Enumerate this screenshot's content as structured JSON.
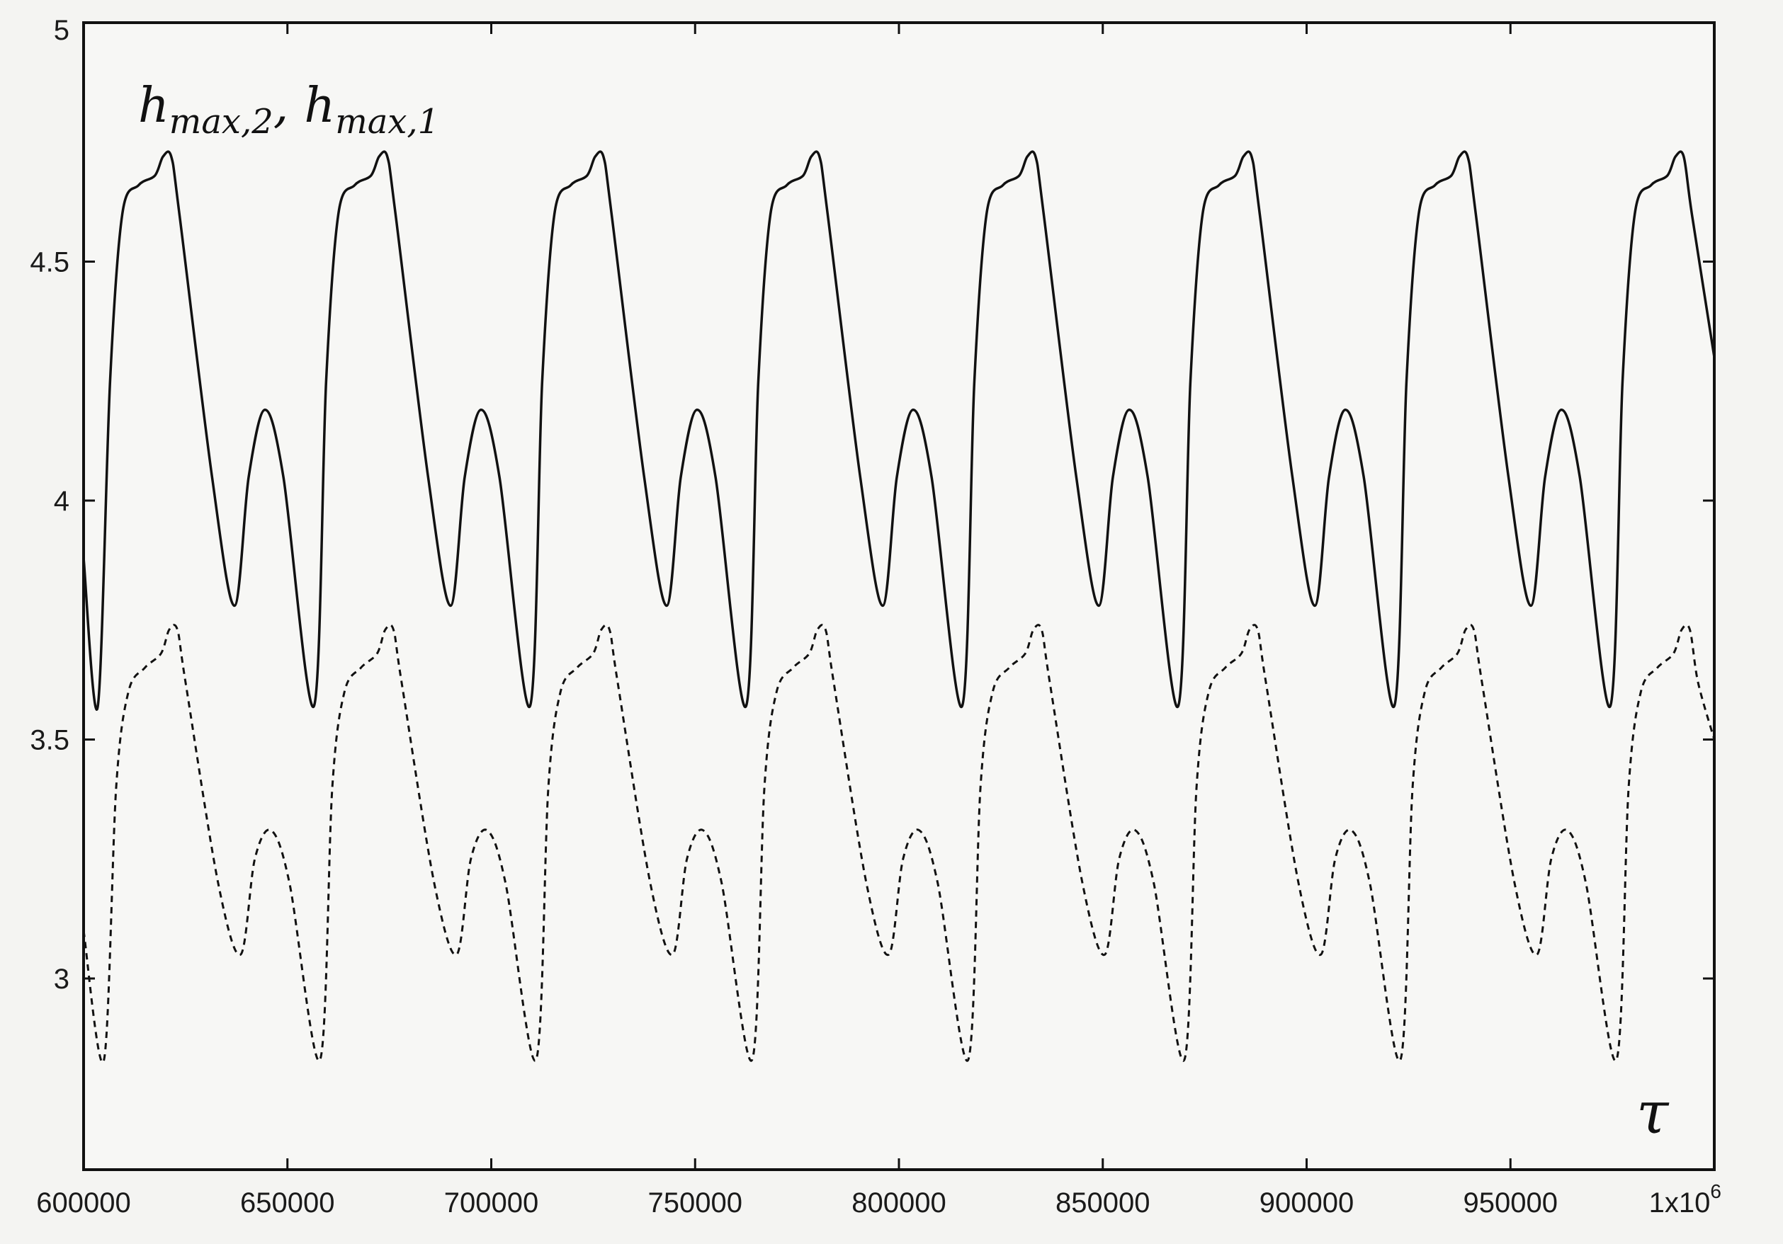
{
  "chart_data": {
    "type": "line",
    "xlabel": "τ",
    "ylabel": "",
    "annotation": {
      "base_a": "h",
      "sub_a": "max,2",
      "separator": ",",
      "base_b": "h",
      "sub_b": "max,1"
    },
    "xlim": [
      600000,
      1000000
    ],
    "ylim": [
      2.6,
      5
    ],
    "x_ticks": [
      600000,
      650000,
      700000,
      750000,
      800000,
      850000,
      900000,
      950000,
      1000000
    ],
    "x_tick_labels": [
      "600000",
      "650000",
      "700000",
      "750000",
      "800000",
      "850000",
      "900000",
      "950000",
      "1x10"
    ],
    "x_tick_last_exponent": "6",
    "y_ticks": [
      3,
      3.5,
      4,
      4.5,
      5
    ],
    "y_tick_labels": [
      "3",
      "3.5",
      "4",
      "4.5",
      "5"
    ],
    "grid": false,
    "legend": "none",
    "series": [
      {
        "style": "solid",
        "color": "#111111",
        "x": [
          600000,
          603500,
          606500,
          609500,
          613500,
          617500,
          619500,
          621500,
          623500,
          631500,
          637000,
          640500,
          644500,
          649000,
          656500,
          659500,
          662500,
          666500,
          670500,
          672500,
          674500,
          676500,
          684500,
          690000,
          693500,
          697500,
          702000,
          709500,
          712500,
          715500,
          719500,
          723500,
          725500,
          727500,
          729500,
          737500,
          743000,
          746500,
          750500,
          755000,
          762500,
          765500,
          768500,
          772500,
          776500,
          778500,
          780500,
          782500,
          790500,
          796000,
          799500,
          803500,
          808000,
          815500,
          818500,
          821500,
          825500,
          829500,
          831500,
          833500,
          835500,
          843500,
          849000,
          852500,
          856500,
          861000,
          868500,
          871500,
          874500,
          878500,
          882500,
          884500,
          886500,
          888500,
          896500,
          902000,
          905500,
          909500,
          914000,
          921500,
          924500,
          927500,
          931500,
          935500,
          937500,
          939500,
          941500,
          949500,
          955000,
          958500,
          962500,
          967000,
          974500,
          977500,
          980500,
          984500,
          988500,
          990500,
          992500,
          994500,
          1000000
        ],
        "y": [
          3.88,
          3.57,
          4.25,
          4.6,
          4.66,
          4.68,
          4.72,
          4.72,
          4.6,
          4.05,
          3.78,
          4.05,
          4.19,
          4.05,
          3.57,
          4.25,
          4.6,
          4.66,
          4.68,
          4.72,
          4.72,
          4.6,
          4.05,
          3.78,
          4.05,
          4.19,
          4.05,
          3.57,
          4.25,
          4.6,
          4.66,
          4.68,
          4.72,
          4.72,
          4.6,
          4.05,
          3.78,
          4.05,
          4.19,
          4.05,
          3.57,
          4.25,
          4.6,
          4.66,
          4.68,
          4.72,
          4.72,
          4.6,
          4.05,
          3.78,
          4.05,
          4.19,
          4.05,
          3.57,
          4.25,
          4.6,
          4.66,
          4.68,
          4.72,
          4.72,
          4.6,
          4.05,
          3.78,
          4.05,
          4.19,
          4.05,
          3.57,
          4.25,
          4.6,
          4.66,
          4.68,
          4.72,
          4.72,
          4.6,
          4.05,
          3.78,
          4.05,
          4.19,
          4.05,
          3.57,
          4.25,
          4.6,
          4.66,
          4.68,
          4.72,
          4.72,
          4.6,
          4.05,
          3.78,
          4.05,
          4.19,
          4.05,
          3.57,
          4.25,
          4.6,
          4.66,
          4.68,
          4.72,
          4.72,
          4.6,
          4.3
        ]
      },
      {
        "style": "dashed",
        "color": "#111111",
        "x": [
          600000,
          605000,
          608000,
          611000,
          615000,
          619000,
          621000,
          623000,
          625000,
          633000,
          638500,
          642000,
          646000,
          650500,
          658000,
          661000,
          664000,
          668000,
          672000,
          674000,
          676000,
          678000,
          686000,
          691500,
          695000,
          699000,
          703500,
          711000,
          714000,
          717000,
          721000,
          725000,
          727000,
          729000,
          731000,
          739000,
          744500,
          748000,
          752000,
          756500,
          764000,
          767000,
          770000,
          774000,
          778000,
          780000,
          782000,
          784000,
          792000,
          797500,
          801000,
          805000,
          809500,
          817000,
          820000,
          823000,
          827000,
          831000,
          833000,
          835000,
          837000,
          845000,
          850500,
          854000,
          858000,
          862500,
          870000,
          873000,
          876000,
          880000,
          884000,
          886000,
          888000,
          890000,
          898000,
          903500,
          907000,
          911000,
          915500,
          923000,
          926000,
          929000,
          933000,
          937000,
          939000,
          941000,
          943000,
          951000,
          956500,
          960000,
          964000,
          968500,
          976000,
          979000,
          982000,
          986000,
          990000,
          992000,
          994000,
          996000,
          1000000
        ],
        "y": [
          3.1,
          2.83,
          3.4,
          3.6,
          3.65,
          3.68,
          3.73,
          3.73,
          3.62,
          3.2,
          3.05,
          3.25,
          3.31,
          3.2,
          2.83,
          3.4,
          3.6,
          3.65,
          3.68,
          3.73,
          3.73,
          3.62,
          3.2,
          3.05,
          3.25,
          3.31,
          3.2,
          2.83,
          3.4,
          3.6,
          3.65,
          3.68,
          3.73,
          3.73,
          3.62,
          3.2,
          3.05,
          3.25,
          3.31,
          3.2,
          2.83,
          3.4,
          3.6,
          3.65,
          3.68,
          3.73,
          3.73,
          3.62,
          3.2,
          3.05,
          3.25,
          3.31,
          3.2,
          2.83,
          3.4,
          3.6,
          3.65,
          3.68,
          3.73,
          3.73,
          3.62,
          3.2,
          3.05,
          3.25,
          3.31,
          3.2,
          2.83,
          3.4,
          3.6,
          3.65,
          3.68,
          3.73,
          3.73,
          3.62,
          3.2,
          3.05,
          3.25,
          3.31,
          3.2,
          2.83,
          3.4,
          3.6,
          3.65,
          3.68,
          3.73,
          3.73,
          3.62,
          3.2,
          3.05,
          3.25,
          3.31,
          3.2,
          2.83,
          3.4,
          3.6,
          3.65,
          3.68,
          3.73,
          3.73,
          3.62,
          3.5
        ]
      }
    ]
  }
}
